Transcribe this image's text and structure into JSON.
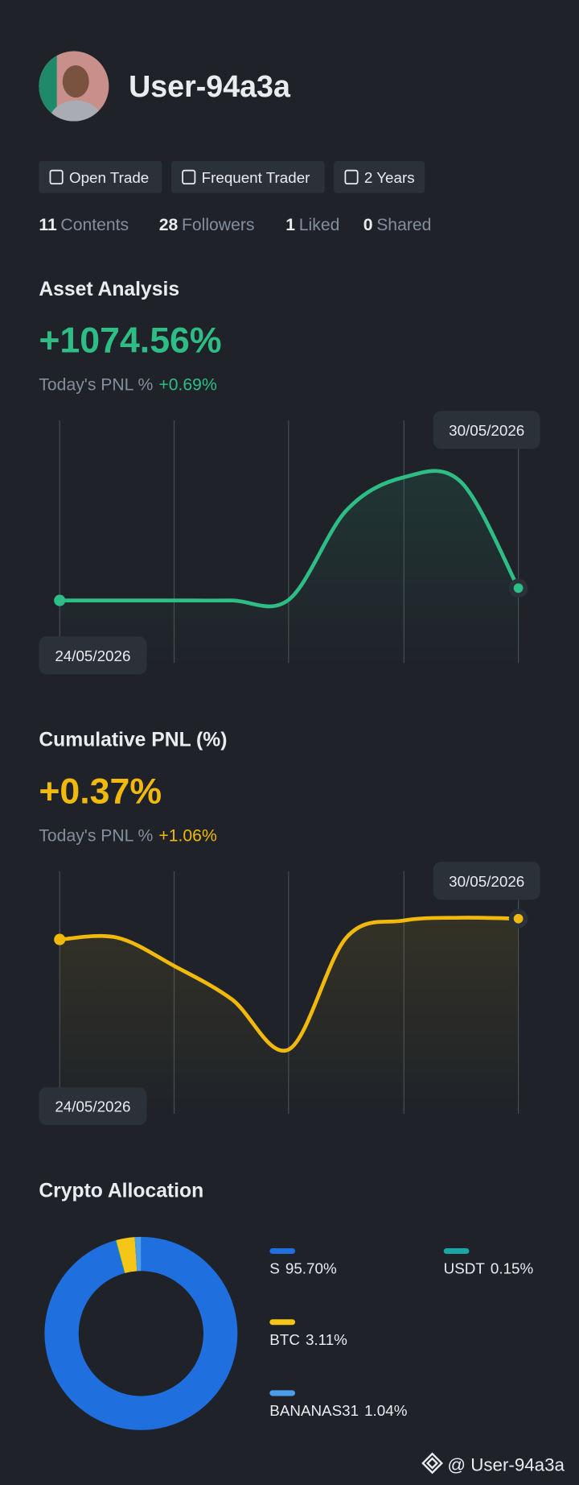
{
  "profile": {
    "username": "User-94a3a",
    "tags": [
      "Open Trade",
      "Frequent Trader",
      "2 Years"
    ],
    "stats": [
      {
        "count": "11",
        "label": "Contents"
      },
      {
        "count": "28",
        "label": "Followers"
      },
      {
        "count": "1",
        "label": "Liked"
      },
      {
        "count": "0",
        "label": "Shared"
      }
    ]
  },
  "chart_data": [
    {
      "type": "line",
      "title": "Asset Analysis",
      "headline": "+1074.56%",
      "today_label": "Today's PNL %",
      "today_value": "+0.69%",
      "start_label": "24/05/2026",
      "end_label": "30/05/2026",
      "color": "#2ebd85",
      "values": [
        0,
        0,
        0,
        0,
        1,
        95,
        130,
        125,
        13
      ],
      "ylim": [
        -40,
        180
      ]
    },
    {
      "type": "line",
      "title": "Cumulative PNL (%)",
      "headline": "+0.37%",
      "today_label": "Today's PNL %",
      "today_value": "+1.06%",
      "start_label": "24/05/2026",
      "end_label": "30/05/2026",
      "color": "#f0b90b",
      "values": [
        88,
        90,
        60,
        25,
        -28,
        90,
        108,
        111,
        110
      ],
      "ylim": [
        -70,
        150
      ]
    },
    {
      "type": "pie",
      "title": "Crypto Allocation",
      "categories": [
        "S",
        "USDT",
        "BTC",
        "BANANAS31"
      ],
      "values": [
        95.7,
        0.15,
        3.11,
        1.04
      ],
      "value_labels": [
        "95.70%",
        "0.15%",
        "3.11%",
        "1.04%"
      ],
      "colors": [
        "#1f6fde",
        "#1aa6a6",
        "#f5c518",
        "#4a9eea"
      ]
    }
  ],
  "watermark": "@ User-94a3a"
}
